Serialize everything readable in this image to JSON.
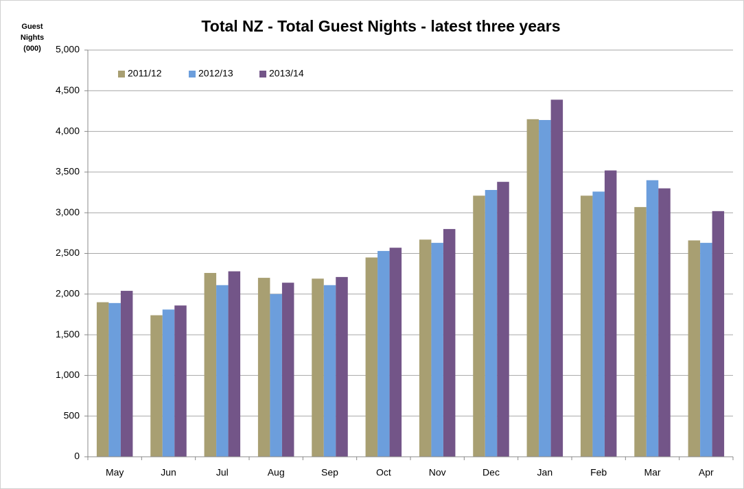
{
  "chart_data": {
    "type": "bar",
    "title": "Total NZ - Total Guest Nights - latest three years",
    "ylabel": "Guest Nights (000)",
    "categories": [
      "May",
      "Jun",
      "Jul",
      "Aug",
      "Sep",
      "Oct",
      "Nov",
      "Dec",
      "Jan",
      "Feb",
      "Mar",
      "Apr"
    ],
    "series": [
      {
        "name": "2011/12",
        "color": "#a89f72",
        "values": [
          1900,
          1740,
          2260,
          2200,
          2190,
          2450,
          2670,
          3210,
          4150,
          3210,
          3070,
          2660
        ]
      },
      {
        "name": "2012/13",
        "color": "#6c9edc",
        "values": [
          1890,
          1810,
          2110,
          2000,
          2110,
          2530,
          2630,
          3280,
          4140,
          3260,
          3400,
          2630
        ]
      },
      {
        "name": "2013/14",
        "color": "#735588",
        "values": [
          2040,
          1860,
          2280,
          2140,
          2210,
          2570,
          2800,
          3380,
          4390,
          3520,
          3300,
          3020
        ]
      }
    ],
    "ylim": [
      0,
      5000
    ],
    "yticks": [
      0,
      500,
      {
        "value": 1000,
        "label": "1,000"
      },
      {
        "value": 1500,
        "label": "1,500"
      },
      {
        "value": 2000,
        "label": "2,000"
      },
      {
        "value": 2500,
        "label": "2,500"
      },
      {
        "value": 3000,
        "label": "3,000"
      },
      {
        "value": 3500,
        "label": "3,500"
      },
      {
        "value": 4000,
        "label": "4,000"
      },
      {
        "value": 4500,
        "label": "4,500"
      },
      {
        "value": 5000,
        "label": "5,000"
      }
    ],
    "grid": true,
    "legend": "upper left"
  }
}
